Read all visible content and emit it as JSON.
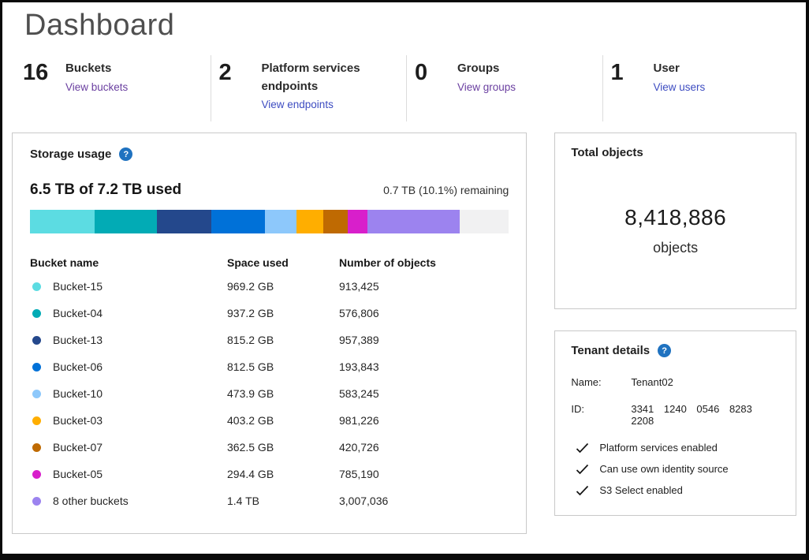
{
  "page": {
    "title": "Dashboard"
  },
  "stats": [
    {
      "value": "16",
      "label": "Buckets",
      "link": "View buckets",
      "link_color": "#6a3fa0"
    },
    {
      "value": "2",
      "label": "Platform services endpoints",
      "link": "View endpoints",
      "link_color": "#3d4cc1"
    },
    {
      "value": "0",
      "label": "Groups",
      "link": "View groups",
      "link_color": "#6a3fa0"
    },
    {
      "value": "1",
      "label": "User",
      "link": "View users",
      "link_color": "#3d4cc1"
    }
  ],
  "storage_panel": {
    "title": "Storage usage",
    "help_icon": "question-circle-icon",
    "help_glyph": "?",
    "used_summary": "6.5 TB of 7.2 TB used",
    "remaining_summary": "0.7 TB (10.1%) remaining",
    "table_headers": [
      "Bucket name",
      "Space used",
      "Number of objects"
    ]
  },
  "chart_data": {
    "type": "bar",
    "subtype": "horizontal-stacked",
    "title": "Storage usage",
    "total_capacity": "7.2 TB",
    "used": "6.5 TB",
    "remaining": "0.7 TB",
    "remaining_pct": 10.1,
    "segments": [
      {
        "label": "Bucket-15",
        "space_used": "969.2 GB",
        "objects": "913,425",
        "color": "#5cdce2",
        "pct": 13.5
      },
      {
        "label": "Bucket-04",
        "space_used": "937.2 GB",
        "objects": "576,806",
        "color": "#02abb5",
        "pct": 13.0
      },
      {
        "label": "Bucket-13",
        "space_used": "815.2 GB",
        "objects": "957,389",
        "color": "#24488c",
        "pct": 11.3
      },
      {
        "label": "Bucket-06",
        "space_used": "812.5 GB",
        "objects": "193,843",
        "color": "#0071d8",
        "pct": 11.3
      },
      {
        "label": "Bucket-10",
        "space_used": "473.9 GB",
        "objects": "583,245",
        "color": "#8dc8fb",
        "pct": 6.6
      },
      {
        "label": "Bucket-03",
        "space_used": "403.2 GB",
        "objects": "981,226",
        "color": "#ffae00",
        "pct": 5.6
      },
      {
        "label": "Bucket-07",
        "space_used": "362.5 GB",
        "objects": "420,726",
        "color": "#bf6a02",
        "pct": 5.0
      },
      {
        "label": "Bucket-05",
        "space_used": "294.4 GB",
        "objects": "785,190",
        "color": "#d81fcb",
        "pct": 4.1
      },
      {
        "label": "8 other buckets",
        "space_used": "1.4 TB",
        "objects": "3,007,036",
        "color": "#9c83ef",
        "pct": 19.4
      },
      {
        "label": "remaining",
        "space_used": "0.7 TB",
        "objects": "",
        "color": "#f1f1f2",
        "pct": 10.2,
        "in_table": false
      }
    ]
  },
  "objects_panel": {
    "title": "Total objects",
    "count": "8,418,886",
    "unit": "objects"
  },
  "tenant_panel": {
    "title": "Tenant details",
    "help_icon": "question-circle-icon",
    "help_glyph": "?",
    "fields": [
      {
        "label": "Name:",
        "value": "Tenant02"
      },
      {
        "label": "ID:",
        "value": "3341 1240 0546 8283 2208"
      }
    ],
    "features": [
      "Platform services enabled",
      "Can use own identity source",
      "S3 Select enabled"
    ]
  }
}
